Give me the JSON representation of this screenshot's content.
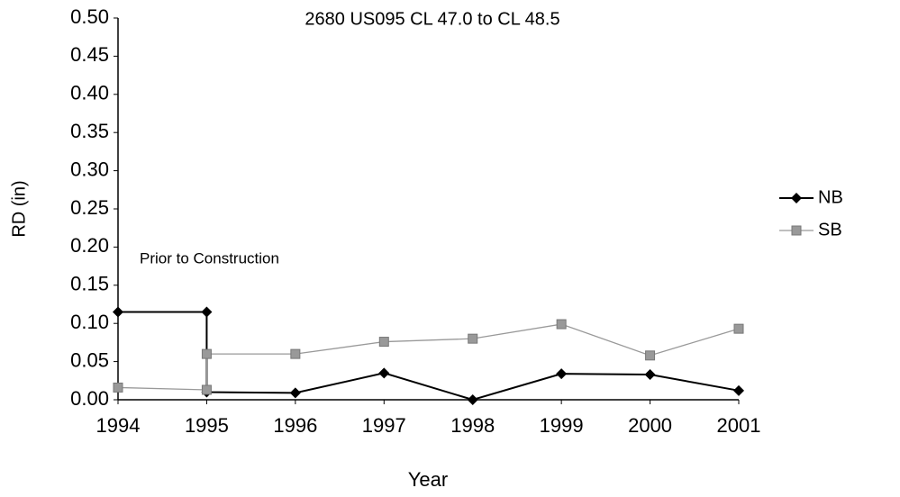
{
  "chart_data": {
    "type": "line",
    "title": "2680 US095 CL 47.0 to CL 48.5",
    "x_label": "Year",
    "y_label": "RD (in)",
    "annotation": "Prior to Construction",
    "x": [
      1994,
      1995,
      1995,
      1996,
      1997,
      1998,
      1999,
      2000,
      2001
    ],
    "series": [
      {
        "name": "NB",
        "color": "#000000",
        "marker": "diamond",
        "values": [
          0.115,
          0.115,
          0.01,
          0.009,
          0.035,
          0.0,
          0.034,
          0.033,
          0.012
        ]
      },
      {
        "name": "SB",
        "color": "#999999",
        "marker": "square",
        "values": [
          0.016,
          0.013,
          0.06,
          0.06,
          0.076,
          0.08,
          0.099,
          0.058,
          0.093
        ]
      }
    ],
    "xlim": [
      1994,
      2001
    ],
    "xticks": [
      1994,
      1995,
      1996,
      1997,
      1998,
      1999,
      2000,
      2001
    ],
    "ylim": [
      0,
      0.5
    ],
    "yticks": [
      {
        "value": 0,
        "label": "0.00"
      },
      0.05,
      {
        "value": 0.1,
        "label": "0.10"
      },
      0.15,
      {
        "value": 0.2,
        "label": "0.20"
      },
      0.25,
      {
        "value": 0.3,
        "label": "0.30"
      },
      0.35,
      {
        "value": 0.4,
        "label": "0.40"
      },
      0.45,
      {
        "value": 0.5,
        "label": "0.50"
      }
    ],
    "legend": "right",
    "grid": false
  }
}
